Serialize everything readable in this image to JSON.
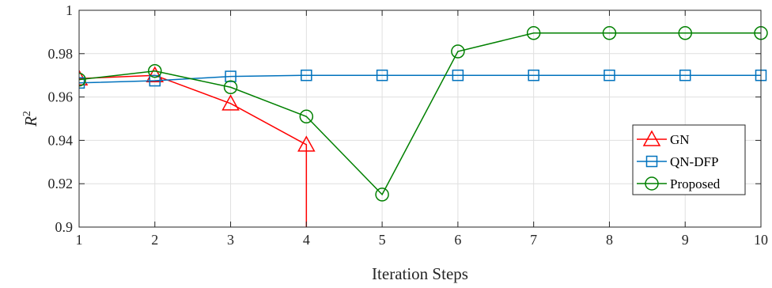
{
  "chart_data": {
    "type": "line",
    "title": "",
    "xlabel": "Iteration Steps",
    "ylabel_main": "R",
    "ylabel_sup": "2",
    "xlim": [
      1,
      10
    ],
    "ylim": [
      0.9,
      1.0
    ],
    "x_ticks": [
      "1",
      "2",
      "3",
      "4",
      "5",
      "6",
      "7",
      "8",
      "9",
      "10"
    ],
    "y_ticks": [
      "0.9",
      "0.92",
      "0.94",
      "0.96",
      "0.98",
      "1"
    ],
    "grid": true,
    "legend_position": "bottom-right",
    "series": [
      {
        "name": "GN",
        "color": "#ff0000",
        "marker": "triangle",
        "x": [
          1,
          2,
          3,
          4
        ],
        "values": [
          0.9685,
          0.97,
          0.957,
          0.938
        ],
        "drops_below_axis_after_last": true
      },
      {
        "name": "QN-DFP",
        "color": "#0072bd",
        "marker": "square",
        "x": [
          1,
          2,
          3,
          4,
          5,
          6,
          7,
          8,
          9,
          10
        ],
        "values": [
          0.9665,
          0.9675,
          0.9695,
          0.97,
          0.97,
          0.97,
          0.97,
          0.97,
          0.97,
          0.97
        ]
      },
      {
        "name": "Proposed",
        "color": "#008000",
        "marker": "circle",
        "x": [
          1,
          2,
          3,
          4,
          5,
          6,
          7,
          8,
          9,
          10
        ],
        "values": [
          0.968,
          0.972,
          0.9645,
          0.951,
          0.915,
          0.981,
          0.9895,
          0.9895,
          0.9895,
          0.9895
        ]
      }
    ]
  }
}
